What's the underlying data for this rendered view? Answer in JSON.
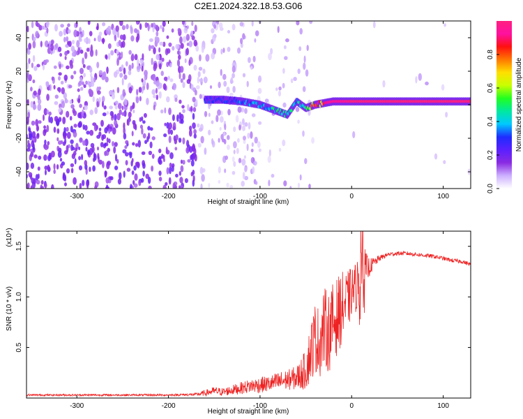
{
  "title": "C2E1.2024.322.18.53.G06",
  "chart_data": [
    {
      "type": "heatmap",
      "xlabel": "Height of straight line (km)",
      "ylabel": "Frequency (Hz)",
      "xlim": [
        -355,
        130
      ],
      "ylim": [
        -50,
        50
      ],
      "xticks": [
        -300,
        -200,
        -100,
        0,
        100
      ],
      "yticks": [
        -40,
        -20,
        0,
        20,
        40
      ],
      "colorbar": {
        "label": "Normalized spectral amplitude",
        "range": [
          0,
          1
        ],
        "ticks": [
          "0.0",
          "0.2",
          "0.4",
          "0.6",
          "0.8"
        ],
        "tick_values": [
          0.0,
          0.2,
          0.4,
          0.6,
          0.8
        ],
        "colors": [
          "#ffffff",
          "#cdb0ff",
          "#8a2be2",
          "#5a20ff",
          "#1e2cff",
          "#00c8ff",
          "#00e8a0",
          "#20ff20",
          "#c8ff00",
          "#ffe000",
          "#ff7800",
          "#ff1010",
          "#ff10a0",
          "#ff2080"
        ]
      },
      "ridge": {
        "x": [
          -160,
          -140,
          -120,
          -100,
          -90,
          -80,
          -70,
          -60,
          -50,
          -45,
          -40,
          -30,
          -20,
          -10,
          0,
          20,
          40,
          60,
          80,
          100,
          130
        ],
        "y": [
          3,
          3,
          2,
          0,
          -2,
          -4,
          -6,
          2,
          -2,
          -1,
          0,
          1,
          2,
          2,
          2,
          2,
          2,
          2,
          2,
          2,
          2
        ],
        "amplitude": [
          0.3,
          0.3,
          0.35,
          0.4,
          0.45,
          0.5,
          0.5,
          0.45,
          0.55,
          0.7,
          0.85,
          0.9,
          0.95,
          0.95,
          1.0,
          1.0,
          1.0,
          1.0,
          1.0,
          1.0,
          1.0
        ]
      }
    },
    {
      "type": "line",
      "xlabel": "Height of straight line (km)",
      "ylabel": "SNR (10 * v/v)",
      "y_multiplier": "(x10⁴)",
      "xlim": [
        -355,
        130
      ],
      "ylim": [
        0,
        1.65
      ],
      "xticks": [
        -300,
        -200,
        -100,
        0,
        100
      ],
      "yticks": [
        0.5,
        1.0,
        1.5
      ],
      "ytick_labels": [
        "0.5",
        "1.0",
        "1.5"
      ],
      "color": "#ee2222",
      "series": [
        {
          "x": [
            -355,
            -300,
            -250,
            -200,
            -170,
            -160,
            -150,
            -140,
            -130,
            -120,
            -110,
            -100,
            -90,
            -80,
            -70,
            -60,
            -50,
            -45,
            -40,
            -35,
            -30,
            -25,
            -20,
            -15,
            -10,
            -5,
            0,
            5,
            10,
            12,
            15,
            20,
            30,
            40,
            50,
            60,
            70,
            80,
            90,
            100,
            110,
            120,
            130
          ],
          "y": [
            0.03,
            0.03,
            0.03,
            0.03,
            0.035,
            0.05,
            0.07,
            0.06,
            0.08,
            0.1,
            0.12,
            0.13,
            0.14,
            0.16,
            0.18,
            0.2,
            0.28,
            0.45,
            0.6,
            0.55,
            0.7,
            0.65,
            0.75,
            0.82,
            0.9,
            0.95,
            1.05,
            1.1,
            1.2,
            1.45,
            1.25,
            1.3,
            1.38,
            1.42,
            1.43,
            1.43,
            1.42,
            1.41,
            1.4,
            1.38,
            1.36,
            1.35,
            1.32
          ],
          "noise": [
            0.01,
            0.01,
            0.01,
            0.01,
            0.015,
            0.03,
            0.04,
            0.04,
            0.05,
            0.06,
            0.07,
            0.08,
            0.08,
            0.1,
            0.1,
            0.12,
            0.2,
            0.3,
            0.35,
            0.35,
            0.4,
            0.4,
            0.4,
            0.38,
            0.35,
            0.3,
            0.25,
            0.25,
            0.3,
            0.3,
            0.2,
            0.08,
            0.03,
            0.02,
            0.02,
            0.02,
            0.02,
            0.02,
            0.02,
            0.02,
            0.02,
            0.02,
            0.02
          ]
        }
      ]
    }
  ]
}
